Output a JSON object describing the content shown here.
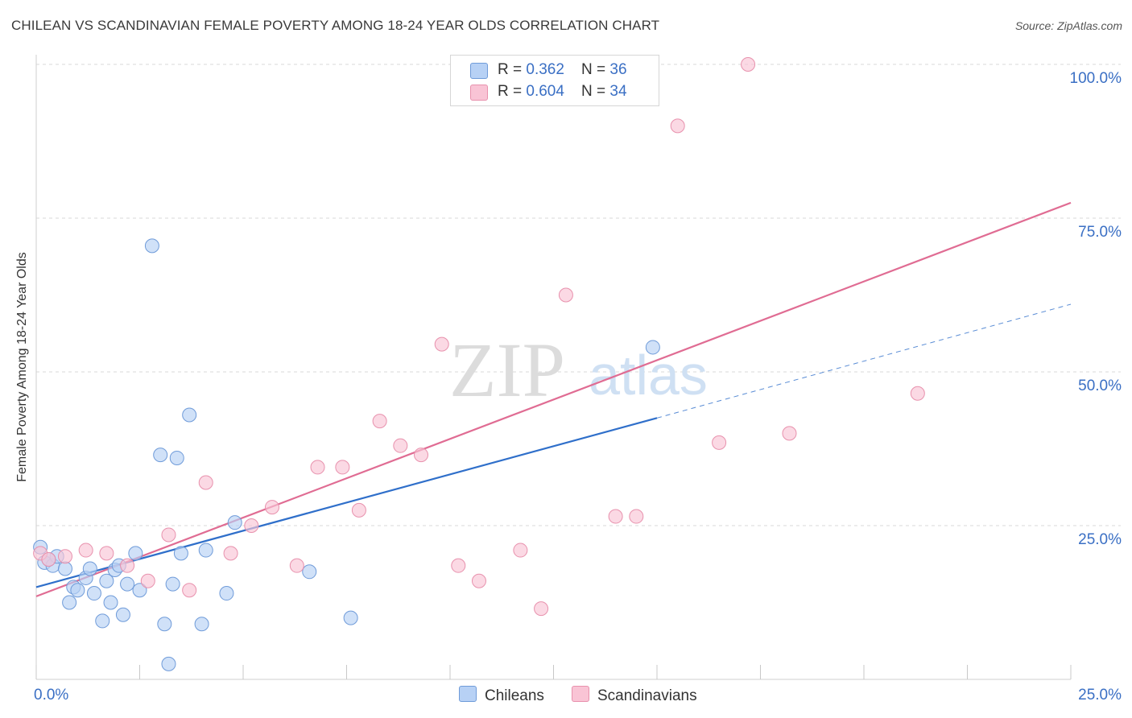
{
  "title": "CHILEAN VS SCANDINAVIAN FEMALE POVERTY AMONG 18-24 YEAR OLDS CORRELATION CHART",
  "source": "Source: ZipAtlas.com",
  "watermark": {
    "zip": "ZIP",
    "atlas": "atlas"
  },
  "legend": {
    "rows": [
      {
        "r_label": "R = ",
        "r_value": "0.362",
        "n_label": "N = ",
        "n_value": "36"
      },
      {
        "r_label": "R = ",
        "r_value": "0.604",
        "n_label": "N = ",
        "n_value": "34"
      }
    ]
  },
  "colors": {
    "chileans_fill": "#b7d1f5",
    "chileans_stroke": "#6f9bd9",
    "chileans_line": "#2f6fca",
    "scandinavians_fill": "#f9c4d5",
    "scandinavians_stroke": "#e891ad",
    "scandinavians_line": "#e06c93",
    "axis_text": "#3a6fc4",
    "grid": "#d9d9d9"
  },
  "chart_data": {
    "type": "scatter",
    "title": "CHILEAN VS SCANDINAVIAN FEMALE POVERTY AMONG 18-24 YEAR OLDS CORRELATION CHART",
    "xlabel": "",
    "ylabel": "Female Poverty Among 18-24 Year Olds",
    "xlim": [
      0,
      25
    ],
    "ylim": [
      0,
      100
    ],
    "x_tick_labels": [
      "0.0%",
      "25.0%"
    ],
    "y_ticks": [
      25,
      50,
      75,
      100
    ],
    "y_tick_labels": [
      "25.0%",
      "50.0%",
      "75.0%",
      "100.0%"
    ],
    "grid": true,
    "legend_position": "top-center",
    "series": [
      {
        "name": "Chileans",
        "r": 0.362,
        "n": 36,
        "points": [
          [
            0.1,
            21.5
          ],
          [
            0.2,
            19.0
          ],
          [
            0.4,
            18.5
          ],
          [
            0.5,
            20.0
          ],
          [
            0.7,
            18.0
          ],
          [
            0.8,
            12.5
          ],
          [
            0.9,
            15.0
          ],
          [
            1.0,
            14.5
          ],
          [
            1.2,
            16.5
          ],
          [
            1.3,
            18.0
          ],
          [
            1.4,
            14.0
          ],
          [
            1.6,
            9.5
          ],
          [
            1.7,
            16.0
          ],
          [
            1.8,
            12.5
          ],
          [
            1.9,
            17.8
          ],
          [
            2.1,
            10.5
          ],
          [
            2.2,
            15.5
          ],
          [
            2.4,
            20.5
          ],
          [
            2.5,
            14.5
          ],
          [
            2.8,
            70.5
          ],
          [
            3.0,
            36.5
          ],
          [
            3.1,
            9.0
          ],
          [
            3.2,
            2.5
          ],
          [
            3.3,
            15.5
          ],
          [
            3.4,
            36.0
          ],
          [
            3.5,
            20.5
          ],
          [
            3.7,
            43.0
          ],
          [
            4.0,
            9.0
          ],
          [
            4.1,
            21.0
          ],
          [
            4.6,
            14.0
          ],
          [
            4.8,
            25.5
          ],
          [
            6.6,
            17.5
          ],
          [
            7.6,
            10.0
          ],
          [
            14.9,
            54.0
          ],
          [
            2.0,
            18.5
          ],
          [
            0.3,
            19.5
          ]
        ],
        "trend": {
          "x": [
            0,
            15
          ],
          "y": [
            15.0,
            42.5
          ]
        },
        "trend_extension": {
          "x": [
            15,
            25
          ],
          "y": [
            42.5,
            61.0
          ]
        }
      },
      {
        "name": "Scandinavians",
        "r": 0.604,
        "n": 34,
        "points": [
          [
            0.1,
            20.5
          ],
          [
            0.3,
            19.5
          ],
          [
            0.7,
            20.0
          ],
          [
            1.2,
            21.0
          ],
          [
            1.7,
            20.5
          ],
          [
            2.2,
            18.5
          ],
          [
            2.7,
            16.0
          ],
          [
            3.2,
            23.5
          ],
          [
            3.7,
            14.5
          ],
          [
            4.1,
            32.0
          ],
          [
            4.7,
            20.5
          ],
          [
            5.2,
            25.0
          ],
          [
            5.7,
            28.0
          ],
          [
            6.3,
            18.5
          ],
          [
            6.8,
            34.5
          ],
          [
            7.4,
            34.5
          ],
          [
            7.8,
            27.5
          ],
          [
            8.3,
            42.0
          ],
          [
            8.8,
            38.0
          ],
          [
            9.3,
            36.5
          ],
          [
            9.8,
            54.5
          ],
          [
            10.2,
            18.5
          ],
          [
            10.7,
            16.0
          ],
          [
            11.2,
            100.0
          ],
          [
            11.7,
            21.0
          ],
          [
            12.2,
            11.5
          ],
          [
            12.8,
            62.5
          ],
          [
            14.0,
            26.5
          ],
          [
            14.5,
            26.5
          ],
          [
            15.5,
            90.0
          ],
          [
            16.5,
            38.5
          ],
          [
            17.2,
            100.0
          ],
          [
            18.2,
            40.0
          ],
          [
            21.3,
            46.5
          ]
        ],
        "trend": {
          "x": [
            0,
            25
          ],
          "y": [
            13.5,
            77.5
          ]
        }
      }
    ]
  },
  "bottom_legend": [
    {
      "label": "Chileans"
    },
    {
      "label": "Scandinavians"
    }
  ]
}
